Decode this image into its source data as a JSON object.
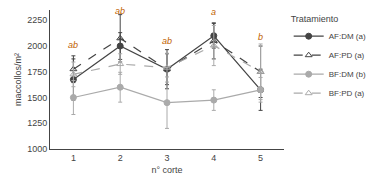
{
  "chart_data": {
    "type": "line",
    "x_label": "n° corte",
    "y_label": "maccollos/m²",
    "legend_title": "Tratamiento",
    "x": [
      1,
      2,
      3,
      4,
      5
    ],
    "series": [
      {
        "name": "AF:DM (a)",
        "color": "#444444",
        "marker": "circle",
        "line_style": "solid",
        "values": [
          1675,
          2000,
          1775,
          2100,
          1575
        ],
        "errors": [
          200,
          130,
          150,
          120,
          200
        ]
      },
      {
        "name": "AF:PD (a)",
        "color": "#444444",
        "marker": "triangle-up-open",
        "line_style": "dashed",
        "values": [
          1775,
          2075,
          1775,
          2050,
          1750
        ],
        "errors": [
          130,
          230,
          190,
          175,
          250
        ]
      },
      {
        "name": "BF:DM (b)",
        "color": "#aaaaaa",
        "marker": "circle",
        "line_style": "solid",
        "values": [
          1500,
          1600,
          1450,
          1475,
          1575
        ],
        "errors": [
          165,
          145,
          250,
          100,
          120
        ]
      },
      {
        "name": "BF:PD (a)",
        "color": "#aaaaaa",
        "marker": "triangle-up-open",
        "line_style": "dashed",
        "values": [
          1725,
          1825,
          1790,
          2005,
          1750
        ],
        "errors": [
          120,
          100,
          140,
          195,
          270
        ]
      }
    ],
    "annotations": [
      {
        "x": 1,
        "y": 1945,
        "text": "ab",
        "color": "#c06000"
      },
      {
        "x": 2,
        "y": 2270,
        "text": "ab",
        "color": "#c06000"
      },
      {
        "x": 3,
        "y": 1985,
        "text": "ab",
        "color": "#c06000"
      },
      {
        "x": 4,
        "y": 2265,
        "text": "a",
        "color": "#c06000"
      },
      {
        "x": 5,
        "y": 2020,
        "text": "b",
        "color": "#c06000"
      }
    ],
    "xlim": [
      0.5,
      5.5
    ],
    "xticks": [
      1,
      2,
      3,
      4,
      5
    ],
    "ylim": [
      1000,
      2350
    ],
    "yticks": [
      1000,
      1250,
      1500,
      1750,
      2000,
      2250
    ],
    "grid": false,
    "legend": "right"
  }
}
